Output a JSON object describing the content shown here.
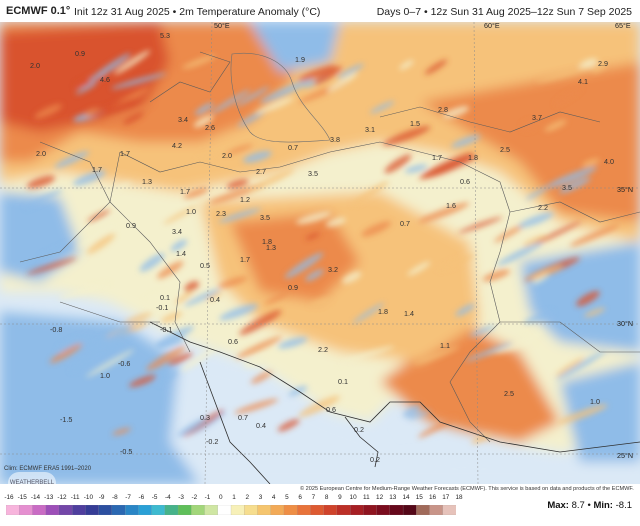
{
  "header": {
    "model": "ECMWF 0.1°",
    "init_text": "Init 12z 31 Aug 2025 • 2m Temperature Anomaly (°C)",
    "days_text": "Days 0–7 • 12z Sun 31 Aug 2025–12z Sun 7 Sep 2025"
  },
  "map": {
    "graticule_labels": [
      "50°E",
      "60°E",
      "35°N",
      "30°N",
      "65°E",
      "25°N"
    ],
    "values": [
      "5.3",
      "0.9",
      "2.0",
      "4.6",
      "2.6",
      "3.4",
      "3.8",
      "1.5",
      "1.9",
      "2.9",
      "4.1",
      "3.7",
      "1.7",
      "2.8",
      "3.1",
      "0.7",
      "3.5",
      "0.6",
      "2.0",
      "1.7",
      "1.3",
      "4.2",
      "2.0",
      "2.7",
      "1.7",
      "1.8",
      "4.0",
      "3.5",
      "1.6",
      "2.2",
      "2.5",
      "0.7",
      "1.2",
      "3.5",
      "1.7",
      "1.0",
      "2.3",
      "0.9",
      "3.4",
      "1.4",
      "1.8",
      "1.3",
      "0.5",
      "0.4",
      "3.2",
      "1.7",
      "0.9",
      "0.1",
      "1.8",
      "1.4",
      "1.1",
      "0.6",
      "-0.1",
      "-0.8",
      "-0.6",
      "1.0",
      "-1.5",
      "-0.2",
      "2.2",
      "0.1",
      "0.6",
      "0.7",
      "0.3",
      "0.4",
      "0.2",
      "2.5",
      "1.0",
      "0.2",
      "-0.5",
      "-0.1"
    ],
    "colors": {
      "ocean": "#dbe9f6",
      "cool": "#8fbce8",
      "neutral": "#f4f0cd",
      "warm": "#f6c27a",
      "hot": "#ec8a4c",
      "hottest": "#d9532d"
    }
  },
  "credits": {
    "climatology": "Clim: ECMWF ERA5 1991–2020",
    "copyright": "© 2025 European Centre for Medium-Range Weather Forecasts (ECMWF). This service is based on data and products of the ECMWF.",
    "watermark": "WEATHERBELL"
  },
  "colorbar": {
    "labels": [
      "-16",
      "-15",
      "-14",
      "-13",
      "-12",
      "-11",
      "-10",
      "-9",
      "-8",
      "-7",
      "-6",
      "-5",
      "-4",
      "-3",
      "-2",
      "-1",
      "0",
      "1",
      "2",
      "3",
      "4",
      "5",
      "6",
      "7",
      "8",
      "9",
      "10",
      "11",
      "12",
      "13",
      "14",
      "15",
      "16",
      "17",
      "18"
    ],
    "colors": [
      "#f7b4dc",
      "#e58fd0",
      "#c96bc4",
      "#9d4fb8",
      "#7346a8",
      "#4f3e9e",
      "#363c96",
      "#2c4fa0",
      "#2b68b2",
      "#2a86c6",
      "#2aa0d6",
      "#3dbad0",
      "#46b38a",
      "#5fbf5a",
      "#a2d67a",
      "#cfe6a3",
      "#ffffff",
      "#f7f0b8",
      "#f6dd8e",
      "#f5c56e",
      "#f2aa57",
      "#ee8e45",
      "#e8733a",
      "#dd5a31",
      "#cf432b",
      "#bc2f27",
      "#a61f24",
      "#8f1420",
      "#7a0c1e",
      "#66081b",
      "#540718",
      "#a06a5a",
      "#c89488",
      "#e6c2ba"
    ]
  },
  "stats": {
    "max_label": "Max:",
    "max_value": "8.7",
    "separator": "•",
    "min_label": "Min:",
    "min_value": "-8.1"
  }
}
